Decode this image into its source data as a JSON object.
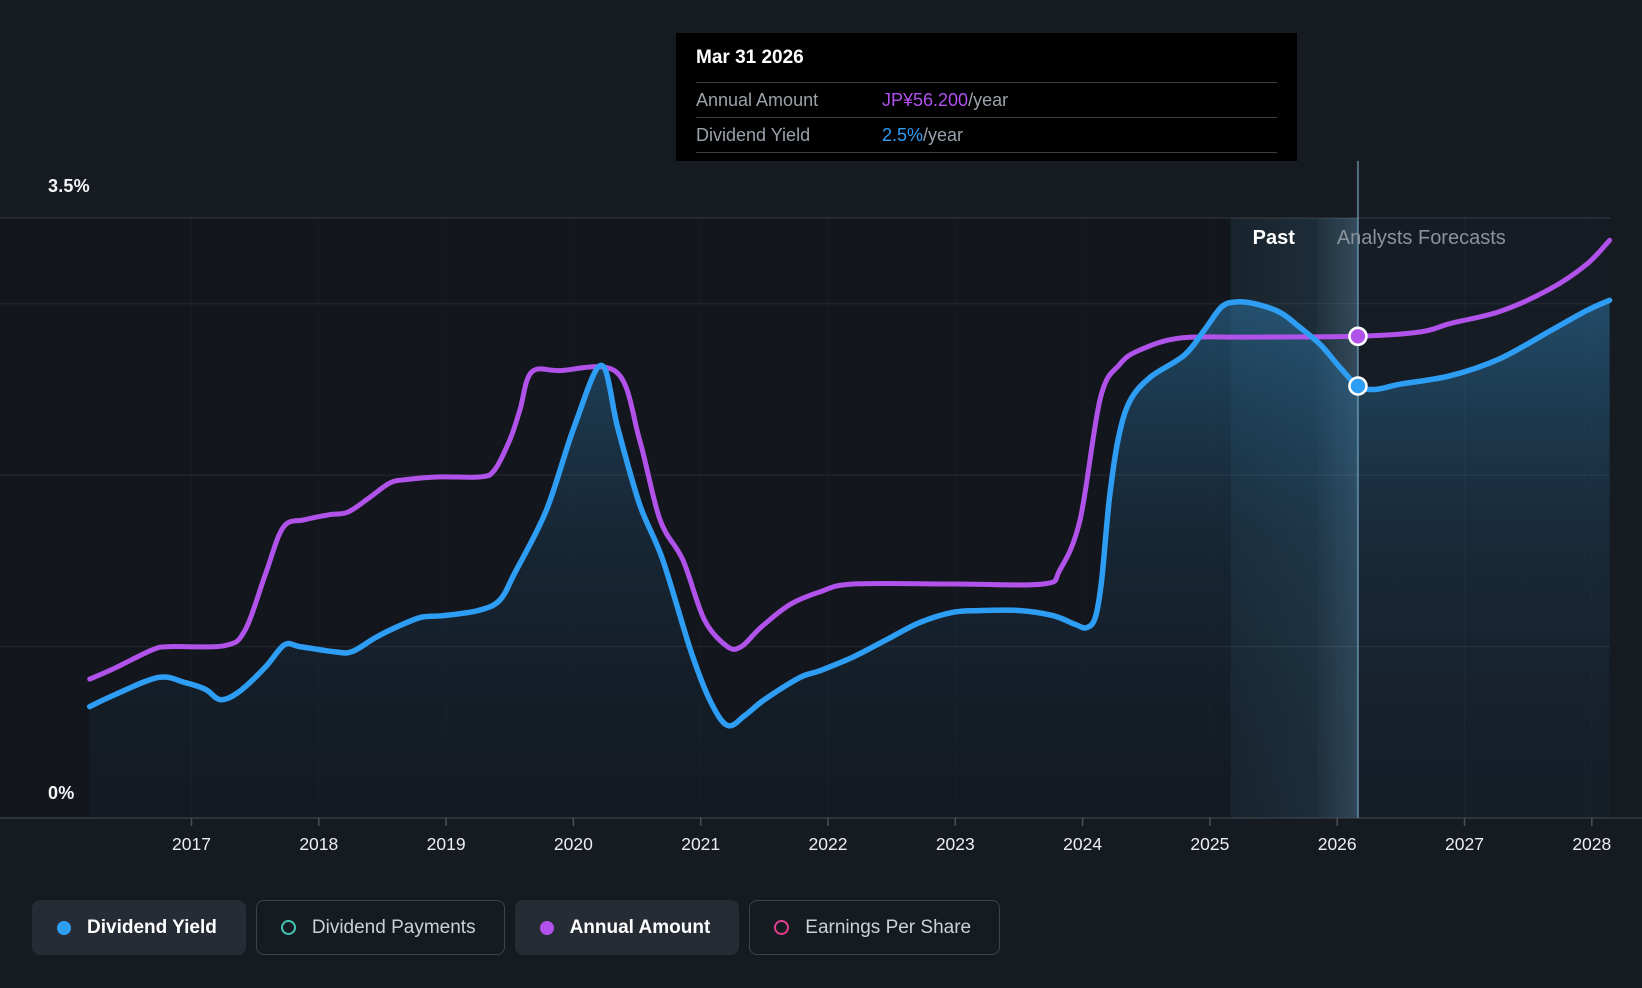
{
  "tooltip": {
    "title": "Mar 31 2026",
    "rows": [
      {
        "label": "Annual Amount",
        "value": "JP¥56.200",
        "suffix": "/year",
        "color": "#b050ee"
      },
      {
        "label": "Dividend Yield",
        "value": "2.5%",
        "suffix": "/year",
        "color": "#2e9df4"
      }
    ]
  },
  "zones": {
    "past": "Past",
    "forecast": "Analysts Forecasts"
  },
  "legend": [
    {
      "label": "Dividend Yield",
      "color": "#2e9df4",
      "filled": true,
      "active": true
    },
    {
      "label": "Dividend Payments",
      "color": "#3fc8b4",
      "filled": false,
      "active": false
    },
    {
      "label": "Annual Amount",
      "color": "#b153ea",
      "filled": true,
      "active": true
    },
    {
      "label": "Earnings Per Share",
      "color": "#e13f8f",
      "filled": false,
      "active": false
    }
  ],
  "chart_data": {
    "type": "line",
    "title": "Dividend yield and payments history with analyst forecasts",
    "x_axis": {
      "ticks": [
        "2017",
        "2018",
        "2019",
        "2020",
        "2021",
        "2022",
        "2023",
        "2024",
        "2025",
        "2026",
        "2027",
        "2028"
      ],
      "range": [
        2016.2,
        2028.15
      ]
    },
    "y_axis": {
      "unit": "%",
      "range": [
        0,
        3.5
      ],
      "gridlines": [
        0,
        1,
        2,
        3,
        3.5
      ],
      "label_top": "3.5%",
      "label_bottom": "0%"
    },
    "today_year": 2025.84,
    "hover_year": 2026.163,
    "band_year_start": 2025.163,
    "series": [
      {
        "name": "Dividend Yield",
        "unit": "%",
        "color": "#2e9df4",
        "area": true,
        "marker": {
          "year": 2026.163,
          "value": 2.52
        },
        "points": [
          [
            2016.2,
            0.65
          ],
          [
            2016.4,
            0.72
          ],
          [
            2016.74,
            0.82
          ],
          [
            2016.95,
            0.79
          ],
          [
            2017.11,
            0.75
          ],
          [
            2017.23,
            0.69
          ],
          [
            2017.38,
            0.74
          ],
          [
            2017.58,
            0.88
          ],
          [
            2017.73,
            1.01
          ],
          [
            2017.85,
            1.0
          ],
          [
            2018.12,
            0.97
          ],
          [
            2018.26,
            0.97
          ],
          [
            2018.44,
            1.05
          ],
          [
            2018.6,
            1.11
          ],
          [
            2018.8,
            1.17
          ],
          [
            2018.97,
            1.18
          ],
          [
            2019.25,
            1.21
          ],
          [
            2019.42,
            1.27
          ],
          [
            2019.54,
            1.43
          ],
          [
            2019.79,
            1.8
          ],
          [
            2020.01,
            2.29
          ],
          [
            2020.22,
            2.64
          ],
          [
            2020.35,
            2.27
          ],
          [
            2020.52,
            1.83
          ],
          [
            2020.7,
            1.51
          ],
          [
            2020.92,
            0.98
          ],
          [
            2021.07,
            0.69
          ],
          [
            2021.21,
            0.54
          ],
          [
            2021.35,
            0.6
          ],
          [
            2021.5,
            0.69
          ],
          [
            2021.78,
            0.82
          ],
          [
            2021.94,
            0.86
          ],
          [
            2022.2,
            0.94
          ],
          [
            2022.46,
            1.04
          ],
          [
            2022.72,
            1.14
          ],
          [
            2022.98,
            1.2
          ],
          [
            2023.19,
            1.21
          ],
          [
            2023.51,
            1.21
          ],
          [
            2023.77,
            1.18
          ],
          [
            2023.94,
            1.13
          ],
          [
            2024.03,
            1.11
          ],
          [
            2024.1,
            1.17
          ],
          [
            2024.15,
            1.39
          ],
          [
            2024.21,
            1.86
          ],
          [
            2024.28,
            2.21
          ],
          [
            2024.37,
            2.43
          ],
          [
            2024.53,
            2.57
          ],
          [
            2024.8,
            2.7
          ],
          [
            2024.96,
            2.85
          ],
          [
            2025.09,
            2.98
          ],
          [
            2025.2,
            3.01
          ],
          [
            2025.35,
            3.0
          ],
          [
            2025.55,
            2.95
          ],
          [
            2025.71,
            2.86
          ],
          [
            2025.87,
            2.76
          ],
          [
            2026.02,
            2.63
          ],
          [
            2026.163,
            2.52
          ],
          [
            2026.3,
            2.5
          ],
          [
            2026.49,
            2.53
          ],
          [
            2026.89,
            2.58
          ],
          [
            2027.28,
            2.68
          ],
          [
            2027.67,
            2.84
          ],
          [
            2027.96,
            2.96
          ],
          [
            2028.14,
            3.02
          ]
        ]
      },
      {
        "name": "Annual Amount",
        "unit": "JP¥/year",
        "color": "#b153ea",
        "area": false,
        "yen_per_axis_pct": 20,
        "marker": {
          "year": 2026.163,
          "value": 56.2
        },
        "points": [
          [
            2016.2,
            16.2
          ],
          [
            2016.4,
            17.5
          ],
          [
            2016.69,
            19.6
          ],
          [
            2016.83,
            20.0
          ],
          [
            2017.26,
            20.1
          ],
          [
            2017.42,
            21.9
          ],
          [
            2017.58,
            28.4
          ],
          [
            2017.72,
            33.9
          ],
          [
            2017.89,
            34.8
          ],
          [
            2018.09,
            35.4
          ],
          [
            2018.23,
            35.7
          ],
          [
            2018.4,
            37.4
          ],
          [
            2018.56,
            39.1
          ],
          [
            2018.7,
            39.5
          ],
          [
            2018.95,
            39.8
          ],
          [
            2019.27,
            39.8
          ],
          [
            2019.38,
            40.6
          ],
          [
            2019.5,
            44.1
          ],
          [
            2019.58,
            47.6
          ],
          [
            2019.67,
            52.0
          ],
          [
            2019.89,
            52.2
          ],
          [
            2020.34,
            52.0
          ],
          [
            2020.52,
            44.1
          ],
          [
            2020.68,
            34.8
          ],
          [
            2020.86,
            30.1
          ],
          [
            2021.03,
            23.1
          ],
          [
            2021.21,
            20.0
          ],
          [
            2021.32,
            20.0
          ],
          [
            2021.47,
            22.2
          ],
          [
            2021.7,
            24.9
          ],
          [
            2021.94,
            26.4
          ],
          [
            2022.2,
            27.3
          ],
          [
            2023.0,
            27.3
          ],
          [
            2023.69,
            27.3
          ],
          [
            2023.82,
            28.9
          ],
          [
            2023.98,
            34.8
          ],
          [
            2024.14,
            49.0
          ],
          [
            2024.29,
            52.9
          ],
          [
            2024.45,
            54.6
          ],
          [
            2024.77,
            56.0
          ],
          [
            2025.32,
            56.1
          ],
          [
            2026.163,
            56.2
          ],
          [
            2026.65,
            56.7
          ],
          [
            2026.89,
            57.7
          ],
          [
            2027.28,
            59.1
          ],
          [
            2027.67,
            61.7
          ],
          [
            2027.96,
            64.6
          ],
          [
            2028.14,
            67.4
          ]
        ]
      },
      {
        "name": "Dividend Payments",
        "color": "#3fc8b4",
        "visible": false,
        "points": []
      },
      {
        "name": "Earnings Per Share",
        "color": "#e13f8f",
        "visible": false,
        "points": []
      }
    ]
  }
}
